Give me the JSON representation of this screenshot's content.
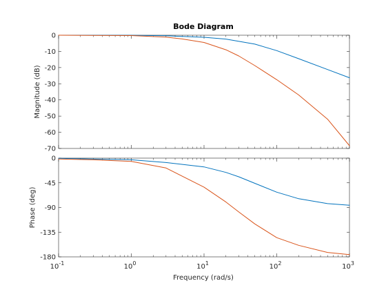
{
  "chart_data": {
    "type": "line",
    "title": "Bode Diagram",
    "xlabel": "Frequency  (rad/s)",
    "x_scale": "log",
    "xlim": [
      0.1,
      1000
    ],
    "x_ticks": [
      0.1,
      1,
      10,
      100,
      1000
    ],
    "panels": [
      {
        "name": "magnitude",
        "ylabel": "Magnitude (dB)",
        "ylim": [
          -70,
          0
        ],
        "y_ticks": [
          0,
          -10,
          -20,
          -30,
          -40,
          -50,
          -60,
          -70
        ],
        "y_tick_labels": [
          "0",
          "-10",
          "-20",
          "-30",
          "-40",
          "-50",
          "-60",
          "-70"
        ],
        "series": [
          {
            "color": "#0072bd",
            "x": [
              0.1,
              1,
              3,
              10,
              20,
              50,
              100,
              200,
              500,
              1000
            ],
            "values": [
              0,
              -0.04,
              -0.35,
              -1.3,
              -2.4,
              -5.5,
              -9.5,
              -14.5,
              -21.2,
              -26.3
            ]
          },
          {
            "color": "#d95319",
            "x": [
              0.1,
              1,
              3,
              5,
              10,
              20,
              30,
              50,
              100,
              200,
              500,
              1000
            ],
            "values": [
              0,
              -0.2,
              -1.2,
              -2.3,
              -4.5,
              -9.0,
              -12.8,
              -18.8,
              -27.5,
              -36.9,
              -51.9,
              -68.3
            ]
          }
        ]
      },
      {
        "name": "phase",
        "ylabel": "Phase (deg)",
        "ylim": [
          -180,
          0
        ],
        "y_ticks": [
          0,
          -45,
          -90,
          -135,
          -180
        ],
        "y_tick_labels": [
          "0",
          "-45",
          "-90",
          "-135",
          "-180"
        ],
        "series": [
          {
            "color": "#0072bd",
            "x": [
              0.1,
              1,
              3,
              10,
              20,
              30,
              50,
              100,
              200,
              500,
              1000
            ],
            "values": [
              -0.4,
              -3,
              -8,
              -16,
              -26,
              -34,
              -46,
              -62,
              -74,
              -83,
              -86
            ]
          },
          {
            "color": "#d95319",
            "x": [
              0.1,
              0.3,
              1,
              3,
              10,
              20,
              30,
              50,
              100,
              200,
              500,
              1000
            ],
            "values": [
              -1.5,
              -3,
              -6,
              -18,
              -53,
              -80,
              -98,
              -120,
              -145,
              -159,
              -172,
              -176
            ]
          }
        ]
      }
    ]
  }
}
